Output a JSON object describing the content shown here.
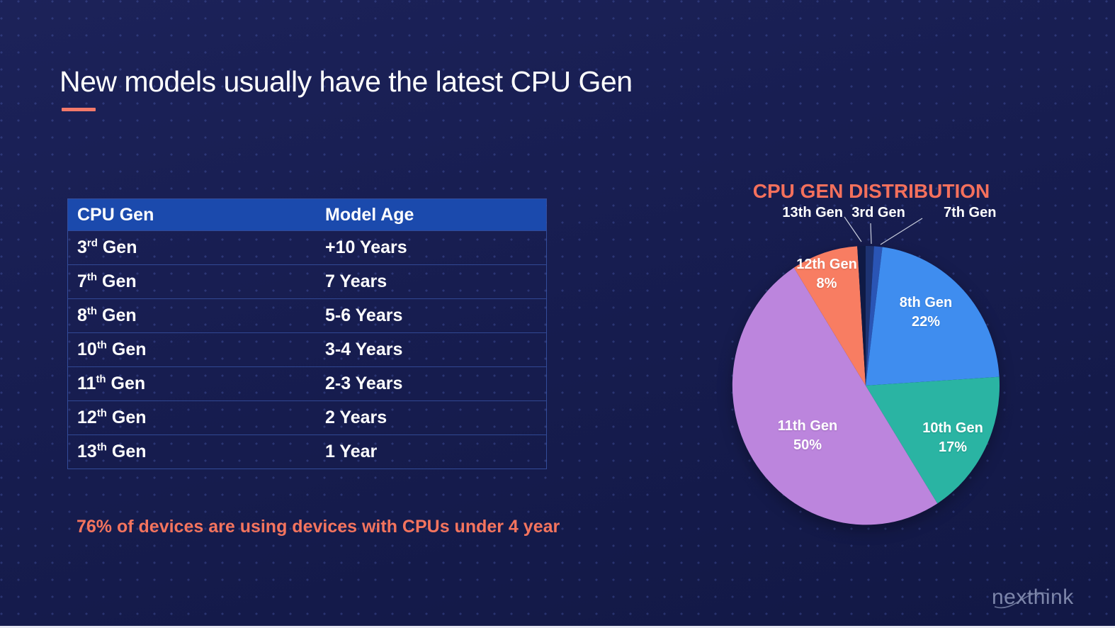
{
  "slide": {
    "title": "New models usually have the latest CPU Gen",
    "note": "76% of devices are using devices with CPUs under 4 year",
    "logo_text": "nexthink"
  },
  "table": {
    "columns": [
      "CPU Gen",
      "Model Age"
    ],
    "rows": [
      {
        "gen_num": "3",
        "gen_sup": "rd",
        "gen_word": " Gen",
        "age": "+10 Years"
      },
      {
        "gen_num": "7",
        "gen_sup": "th",
        "gen_word": " Gen",
        "age": "7 Years"
      },
      {
        "gen_num": "8",
        "gen_sup": "th",
        "gen_word": " Gen",
        "age": "5-6 Years"
      },
      {
        "gen_num": "10",
        "gen_sup": "th",
        "gen_word": " Gen",
        "age": "3-4 Years"
      },
      {
        "gen_num": "11",
        "gen_sup": "th",
        "gen_word": " Gen",
        "age": "2-3 Years"
      },
      {
        "gen_num": "12",
        "gen_sup": "th",
        "gen_word": " Gen",
        "age": "2 Years"
      },
      {
        "gen_num": "13",
        "gen_sup": "th",
        "gen_word": " Gen",
        "age": "1 Year"
      }
    ]
  },
  "chart_data": {
    "type": "pie",
    "title": "CPU GEN DISTRIBUTION",
    "start_angle": "12 o'clock",
    "direction": "clockwise",
    "legend_position": "none",
    "total": 100,
    "slices": [
      {
        "id": "3rd-gen",
        "label": "3rd Gen",
        "value": 1,
        "percent_label": "",
        "color": "#1d3372",
        "placement": "outside-top",
        "value_estimated": true
      },
      {
        "id": "7th-gen",
        "label": "7th Gen",
        "value": 1,
        "percent_label": "",
        "color": "#2a55b5",
        "placement": "outside-top",
        "value_estimated": true
      },
      {
        "id": "8th-gen",
        "label": "8th Gen",
        "value": 22,
        "percent_label": "22%",
        "color": "#3f8def",
        "placement": "inside"
      },
      {
        "id": "10th-gen",
        "label": "10th Gen",
        "value": 17,
        "percent_label": "17%",
        "color": "#2ab4a3",
        "placement": "inside"
      },
      {
        "id": "11th-gen",
        "label": "11th Gen",
        "value": 50,
        "percent_label": "50%",
        "color": "#bc85dd",
        "placement": "inside"
      },
      {
        "id": "12th-gen",
        "label": "12th Gen",
        "value": 8,
        "percent_label": "8%",
        "color": "#f87d62",
        "placement": "inside"
      },
      {
        "id": "13th-gen",
        "label": "13th Gen",
        "value": 1,
        "percent_label": "",
        "color": "#0f1a45",
        "placement": "outside-top",
        "value_estimated": true
      }
    ]
  },
  "colors": {
    "background": "#171d50",
    "accent_salmon": "#f4705c",
    "table_header_bg": "#1b4aad",
    "table_border": "#4c74d8",
    "text_white": "#ffffff",
    "logo_grey": "#7d86aa"
  }
}
